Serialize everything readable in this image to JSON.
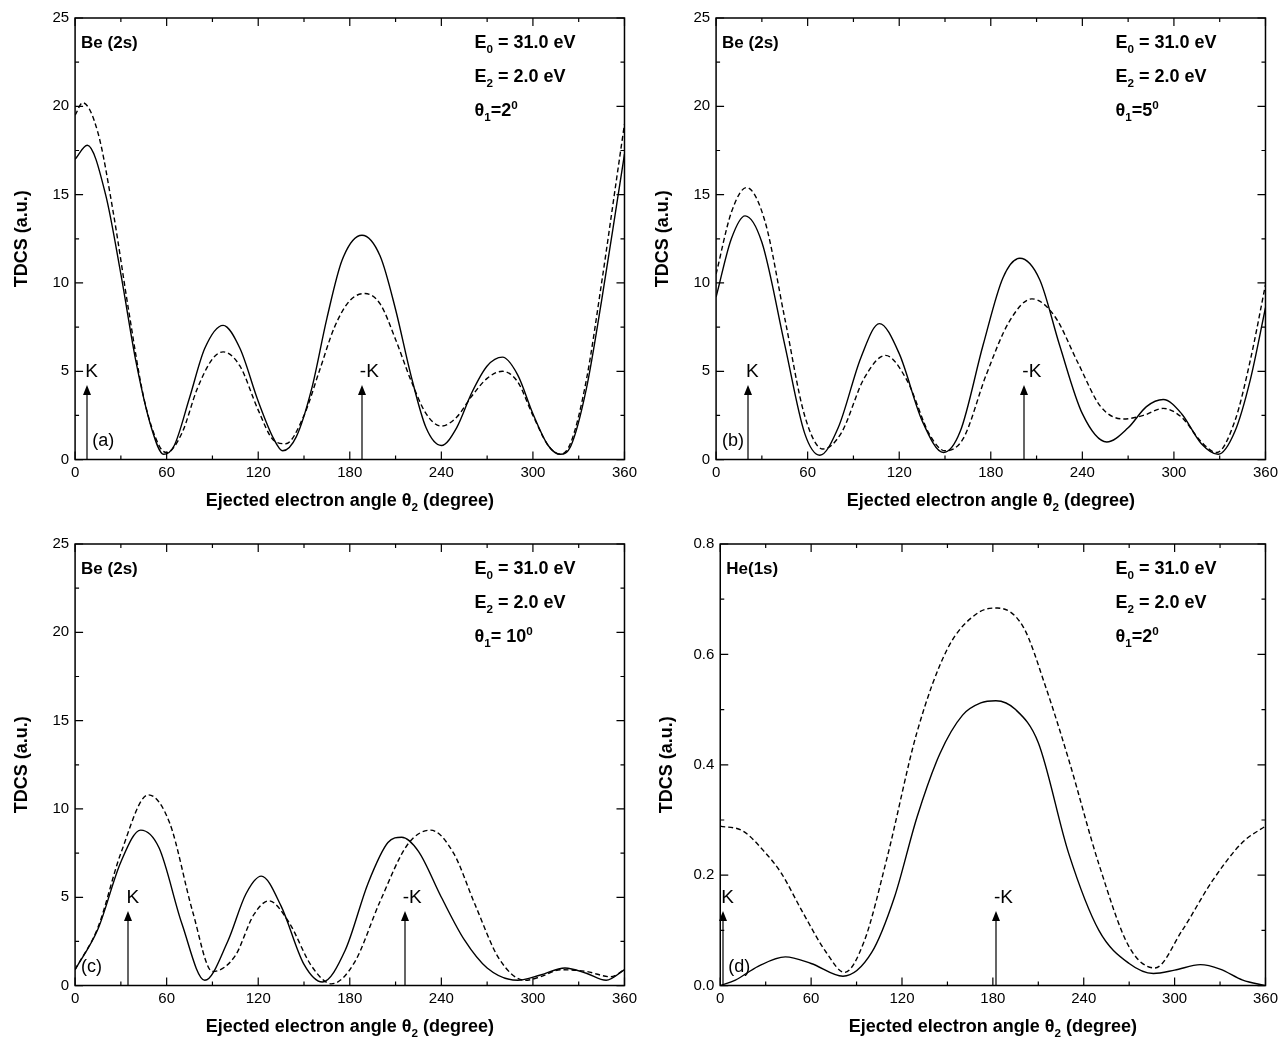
{
  "chart_data": [
    {
      "type": "line",
      "xlabel": "Ejected electron angle θ$_{2}$ (degree)",
      "ylabel": "TDCS (a.u.)",
      "xlim": [
        0,
        360
      ],
      "xticks": [
        0,
        {
          "value": 30,
          "label": null
        },
        60,
        {
          "value": 90,
          "label": null
        },
        120,
        {
          "value": 150,
          "label": null
        },
        180,
        {
          "value": 210,
          "label": null
        },
        240,
        {
          "value": 270,
          "label": null
        },
        300,
        {
          "value": 330,
          "label": null
        },
        360
      ],
      "ylim": [
        0,
        25
      ],
      "yticks": [
        0,
        {
          "value": 2.5,
          "label": null
        },
        5,
        {
          "value": 7.5,
          "label": null
        },
        10,
        {
          "value": 12.5,
          "label": null
        },
        15,
        {
          "value": 17.5,
          "label": null
        },
        20,
        {
          "value": 22.5,
          "label": null
        },
        25
      ],
      "series": [
        {
          "color": "#000000",
          "line_style": "solid",
          "x": [
            0,
            8,
            20,
            30,
            40,
            50,
            58,
            65,
            75,
            85,
            97,
            108,
            120,
            130,
            136,
            145,
            155,
            165,
            175,
            188,
            200,
            210,
            220,
            230,
            240,
            250,
            260,
            270,
            280,
            290,
            300,
            310,
            318,
            325,
            335,
            345,
            355,
            360
          ],
          "values": [
            17.0,
            17.8,
            15,
            10.5,
            5.5,
            1.8,
            0.3,
            0.8,
            3.5,
            6.3,
            7.6,
            6.3,
            3.3,
            1.2,
            0.5,
            1.3,
            4,
            8,
            11.3,
            12.7,
            11.5,
            8.5,
            4.8,
            1.8,
            0.8,
            1.8,
            3.8,
            5.3,
            5.8,
            4.8,
            2.6,
            0.8,
            0.3,
            0.8,
            4,
            9,
            14.5,
            17.3
          ]
        },
        {
          "color": "#000000",
          "line_style": "dashed",
          "x": [
            0,
            5,
            15,
            25,
            35,
            45,
            55,
            60,
            70,
            80,
            90,
            97,
            108,
            120,
            130,
            138,
            150,
            160,
            170,
            180,
            190,
            200,
            210,
            220,
            230,
            240,
            250,
            260,
            270,
            280,
            290,
            300,
            310,
            318,
            325,
            335,
            345,
            355,
            360
          ],
          "values": [
            19.5,
            20.2,
            18.5,
            14,
            8.5,
            3.5,
            0.8,
            0.4,
            1.5,
            4,
            5.7,
            6.1,
            5.3,
            2.8,
            1.1,
            0.9,
            2.5,
            5,
            7.5,
            9,
            9.4,
            8.8,
            6.8,
            4.5,
            2.6,
            1.9,
            2.4,
            3.6,
            4.6,
            5.0,
            4.4,
            2.5,
            0.8,
            0.3,
            1,
            4.5,
            10,
            16,
            19
          ]
        }
      ],
      "annotations": [
        "Be (2s)",
        "E$_{0}$ = 31.0 eV",
        "E$_{2}$ = 2.0 eV",
        "θ$_{1}$=2$^{0}$",
        "(a)",
        "K",
        "-K"
      ]
    },
    {
      "type": "line",
      "xlabel": "Ejected electron angle θ$_{2}$ (degree)",
      "ylabel": "TDCS (a.u.)",
      "xlim": [
        0,
        360
      ],
      "xticks": [
        0,
        {
          "value": 30,
          "label": null
        },
        60,
        {
          "value": 90,
          "label": null
        },
        120,
        {
          "value": 150,
          "label": null
        },
        180,
        {
          "value": 210,
          "label": null
        },
        240,
        {
          "value": 270,
          "label": null
        },
        300,
        {
          "value": 330,
          "label": null
        },
        360
      ],
      "ylim": [
        0,
        25
      ],
      "yticks": [
        0,
        {
          "value": 2.5,
          "label": null
        },
        5,
        {
          "value": 7.5,
          "label": null
        },
        10,
        {
          "value": 12.5,
          "label": null
        },
        15,
        {
          "value": 17.5,
          "label": null
        },
        20,
        {
          "value": 22.5,
          "label": null
        },
        25
      ],
      "series": [
        {
          "color": "#000000",
          "line_style": "solid",
          "x": [
            0,
            10,
            19,
            30,
            45,
            58,
            68,
            80,
            95,
            107,
            120,
            135,
            149,
            160,
            175,
            188,
            199,
            212,
            225,
            240,
            256,
            270,
            282,
            293,
            305,
            318,
            329,
            340,
            350,
            360
          ],
          "values": [
            9.2,
            12.5,
            13.8,
            12.3,
            6.5,
            1.5,
            0.25,
            1.8,
            5.8,
            7.7,
            6,
            2.2,
            0.4,
            1.6,
            6.5,
            10.3,
            11.4,
            10.2,
            6.5,
            2.6,
            1.0,
            1.8,
            3,
            3.4,
            2.6,
            0.9,
            0.3,
            1.6,
            4.5,
            8.6
          ]
        },
        {
          "color": "#000000",
          "line_style": "dashed",
          "x": [
            0,
            10,
            20,
            32,
            45,
            58,
            70,
            82,
            97,
            111,
            125,
            140,
            150,
            162,
            177,
            192,
            207,
            222,
            237,
            252,
            267,
            280,
            293,
            305,
            318,
            328,
            340,
            350,
            360
          ],
          "values": [
            10.5,
            14,
            15.4,
            13.5,
            8,
            2.5,
            0.6,
            1.5,
            4.6,
            5.9,
            4.5,
            1.4,
            0.5,
            1.2,
            4.8,
            7.8,
            9.1,
            8.1,
            5.5,
            3,
            2.3,
            2.5,
            2.9,
            2.4,
            1.0,
            0.4,
            2.2,
            5.6,
            9.9
          ]
        }
      ],
      "annotations": [
        "Be (2s)",
        "E$_{0}$ = 31.0 eV",
        "E$_{2}$ = 2.0 eV",
        "θ$_{1}$=5$^{0}$",
        "(b)",
        "K",
        "-K"
      ]
    },
    {
      "type": "line",
      "xlabel": "Ejected electron angle θ$_{2}$ (degree)",
      "ylabel": "TDCS (a.u.)",
      "xlim": [
        0,
        360
      ],
      "xticks": [
        0,
        {
          "value": 30,
          "label": null
        },
        60,
        {
          "value": 90,
          "label": null
        },
        120,
        {
          "value": 150,
          "label": null
        },
        180,
        {
          "value": 210,
          "label": null
        },
        240,
        {
          "value": 270,
          "label": null
        },
        300,
        {
          "value": 330,
          "label": null
        },
        360
      ],
      "ylim": [
        0,
        25
      ],
      "yticks": [
        0,
        {
          "value": 2.5,
          "label": null
        },
        5,
        {
          "value": 7.5,
          "label": null
        },
        10,
        {
          "value": 12.5,
          "label": null
        },
        15,
        {
          "value": 17.5,
          "label": null
        },
        20,
        {
          "value": 22.5,
          "label": null
        },
        25
      ],
      "series": [
        {
          "color": "#000000",
          "line_style": "solid",
          "x": [
            0,
            15,
            30,
            43,
            55,
            70,
            85,
            100,
            112,
            122,
            135,
            150,
            162,
            177,
            192,
            205,
            214,
            225,
            240,
            255,
            270,
            290,
            305,
            321,
            335,
            348,
            360
          ],
          "values": [
            0.9,
            3.2,
            7,
            8.8,
            7.8,
            3.5,
            0.3,
            2.5,
            5.2,
            6.2,
            4.5,
            1.2,
            0.2,
            2,
            5.8,
            8.1,
            8.4,
            7.6,
            5,
            2.6,
            1,
            0.3,
            0.6,
            1.0,
            0.7,
            0.3,
            0.9
          ]
        },
        {
          "color": "#000000",
          "line_style": "dashed",
          "x": [
            0,
            15,
            30,
            48,
            62,
            77,
            90,
            105,
            117,
            127,
            140,
            155,
            168,
            183,
            200,
            218,
            233,
            248,
            262,
            278,
            295,
            305,
            318,
            335,
            351,
            360
          ],
          "values": [
            0.9,
            3.3,
            7.5,
            10.8,
            9.2,
            4.2,
            0.8,
            1.7,
            4,
            4.8,
            3.6,
            1.1,
            0.1,
            1.3,
            4.8,
            8,
            8.8,
            7.5,
            4.6,
            1.5,
            0.3,
            0.5,
            0.9,
            0.8,
            0.5,
            0.9
          ]
        }
      ],
      "annotations": [
        "Be (2s)",
        "E$_{0}$ = 31.0 eV",
        "E$_{2}$ = 2.0 eV",
        "θ$_{1}$= 10$^{0}$",
        "(c)",
        "K",
        "-K"
      ]
    },
    {
      "type": "line",
      "xlabel": "Ejected electron angle θ$_{2}$ (degree)",
      "ylabel": "TDCS (a.u.)",
      "xlim": [
        0,
        360
      ],
      "xticks": [
        0,
        {
          "value": 30,
          "label": null
        },
        60,
        {
          "value": 90,
          "label": null
        },
        120,
        {
          "value": 150,
          "label": null
        },
        180,
        {
          "value": 210,
          "label": null
        },
        240,
        {
          "value": 270,
          "label": null
        },
        300,
        {
          "value": 330,
          "label": null
        },
        360
      ],
      "ylim": [
        0,
        0.8
      ],
      "yticks": [
        {
          "value": 0,
          "label": "0.0"
        },
        {
          "value": 0.1,
          "label": null
        },
        0.2,
        {
          "value": 0.3,
          "label": null
        },
        0.4,
        {
          "value": 0.5,
          "label": null
        },
        0.6,
        {
          "value": 0.7,
          "label": null
        },
        0.8
      ],
      "series": [
        {
          "color": "#000000",
          "line_style": "solid",
          "x": [
            0,
            10,
            25,
            43,
            60,
            81,
            100,
            115,
            130,
            145,
            160,
            172,
            182,
            195,
            210,
            230,
            250,
            270,
            286,
            300,
            317,
            330,
            345,
            360
          ],
          "values": [
            0,
            0.01,
            0.035,
            0.052,
            0.04,
            0.017,
            0.06,
            0.16,
            0.306,
            0.42,
            0.49,
            0.512,
            0.516,
            0.5,
            0.44,
            0.24,
            0.1,
            0.04,
            0.022,
            0.028,
            0.038,
            0.03,
            0.01,
            0
          ]
        },
        {
          "color": "#000000",
          "line_style": "dashed",
          "x": [
            0,
            15,
            30,
            40,
            55,
            70,
            82,
            95,
            110,
            130,
            150,
            170,
            183,
            200,
            215,
            230,
            250,
            270,
            287,
            305,
            325,
            345,
            360
          ],
          "values": [
            0.289,
            0.28,
            0.24,
            0.205,
            0.13,
            0.06,
            0.024,
            0.08,
            0.23,
            0.46,
            0.61,
            0.675,
            0.684,
            0.65,
            0.54,
            0.41,
            0.22,
            0.07,
            0.032,
            0.1,
            0.19,
            0.26,
            0.289
          ]
        }
      ],
      "annotations": [
        "He(1s)",
        "E$_{0}$ = 31.0 eV",
        "E$_{2}$ = 2.0 eV",
        "θ$_{1}$=2$^{0}$",
        "(d)",
        "K",
        "-K"
      ]
    }
  ]
}
